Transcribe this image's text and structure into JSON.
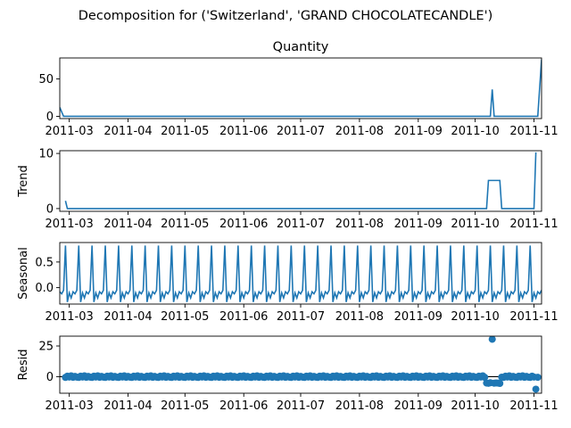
{
  "figure": {
    "suptitle": "Decomposition for ('Switzerland', 'GRAND CHOCOLATECANDLE')"
  },
  "chart_data": [
    {
      "type": "line",
      "title": "Quantity",
      "ylabel": "",
      "xlim": [
        "2011-02-24",
        "2011-11-05"
      ],
      "ylim": [
        -3,
        78
      ],
      "yticks": [
        0,
        50
      ],
      "xticks": [
        "2011-03-01",
        "2011-04-01",
        "2011-05-01",
        "2011-06-01",
        "2011-07-01",
        "2011-08-01",
        "2011-09-01",
        "2011-10-01",
        "2011-11-01"
      ],
      "xticklabels": [
        "2011-03",
        "2011-04",
        "2011-05",
        "2011-06",
        "2011-07",
        "2011-08",
        "2011-09",
        "2011-10",
        "2011-11"
      ],
      "series": [
        {
          "color": "#1f77b4",
          "points": [
            [
              "2011-02-24",
              12
            ],
            [
              "2011-02-26",
              0
            ],
            [
              "2011-10-09",
              0
            ],
            [
              "2011-10-10",
              36
            ],
            [
              "2011-10-11",
              0
            ],
            [
              "2011-11-03",
              0
            ],
            [
              "2011-11-05",
              76
            ]
          ]
        }
      ]
    },
    {
      "type": "line",
      "title": "",
      "ylabel": "Trend",
      "xlim": [
        "2011-02-24",
        "2011-11-05"
      ],
      "ylim": [
        -0.5,
        10.5
      ],
      "yticks": [
        0,
        10
      ],
      "xticks": [
        "2011-03-01",
        "2011-04-01",
        "2011-05-01",
        "2011-06-01",
        "2011-07-01",
        "2011-08-01",
        "2011-09-01",
        "2011-10-01",
        "2011-11-01"
      ],
      "xticklabels": [
        "2011-03",
        "2011-04",
        "2011-05",
        "2011-06",
        "2011-07",
        "2011-08",
        "2011-09",
        "2011-10",
        "2011-11"
      ],
      "series": [
        {
          "color": "#1f77b4",
          "points": [
            [
              "2011-02-27",
              1.4
            ],
            [
              "2011-02-28",
              0
            ],
            [
              "2011-10-07",
              0
            ],
            [
              "2011-10-08",
              5.1
            ],
            [
              "2011-10-14",
              5.1
            ],
            [
              "2011-10-15",
              0
            ],
            [
              "2011-11-01",
              0
            ],
            [
              "2011-11-02",
              10.2
            ]
          ]
        }
      ]
    },
    {
      "type": "line",
      "title": "",
      "ylabel": "Seasonal",
      "xlim": [
        "2011-02-24",
        "2011-11-05"
      ],
      "ylim": [
        -0.32,
        0.88
      ],
      "yticks": [
        0.0,
        0.5
      ],
      "yticklabels": [
        "0.0",
        "0.5"
      ],
      "xticks": [
        "2011-03-01",
        "2011-04-01",
        "2011-05-01",
        "2011-06-01",
        "2011-07-01",
        "2011-08-01",
        "2011-09-01",
        "2011-10-01",
        "2011-11-01"
      ],
      "xticklabels": [
        "2011-03",
        "2011-04",
        "2011-05",
        "2011-06",
        "2011-07",
        "2011-08",
        "2011-09",
        "2011-10",
        "2011-11"
      ],
      "weekly_pattern": [
        -0.08,
        -0.12,
        -0.05,
        0.82,
        -0.28,
        -0.1,
        -0.2
      ],
      "pattern_start": "2011-02-24",
      "pattern_end": "2011-11-05",
      "series": [
        {
          "color": "#1f77b4"
        }
      ]
    },
    {
      "type": "scatter",
      "title": "",
      "ylabel": "Resid",
      "xlim": [
        "2011-02-24",
        "2011-11-05"
      ],
      "ylim": [
        -13.5,
        33
      ],
      "yticks": [
        0,
        25
      ],
      "xticks": [
        "2011-03-01",
        "2011-04-01",
        "2011-05-01",
        "2011-06-01",
        "2011-07-01",
        "2011-08-01",
        "2011-09-01",
        "2011-10-01",
        "2011-11-01"
      ],
      "xticklabels": [
        "2011-03",
        "2011-04",
        "2011-05",
        "2011-06",
        "2011-07",
        "2011-08",
        "2011-09",
        "2011-10",
        "2011-11"
      ],
      "baseline": 0,
      "points_range": [
        "2011-02-27",
        "2011-11-03"
      ],
      "typical_values": [
        -0.6,
        0.4,
        -0.3,
        0.7,
        -0.5,
        0.2,
        -0.4
      ],
      "special_points": [
        [
          "2011-10-07",
          -5.2
        ],
        [
          "2011-10-08",
          -5.4
        ],
        [
          "2011-10-09",
          -5.0
        ],
        [
          "2011-10-10",
          30.5
        ],
        [
          "2011-10-11",
          -5.3
        ],
        [
          "2011-10-12",
          -5.1
        ],
        [
          "2011-10-13",
          -5.2
        ],
        [
          "2011-10-14",
          -5.5
        ],
        [
          "2011-11-02",
          -10.2
        ]
      ],
      "series": [
        {
          "color": "#1f77b4"
        }
      ]
    }
  ]
}
